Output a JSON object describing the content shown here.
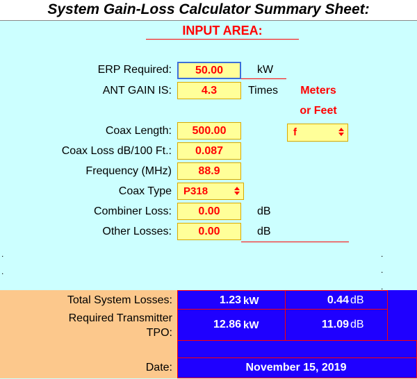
{
  "title": "System Gain-Loss Calculator Summary Sheet:",
  "input_area": {
    "header": "INPUT AREA:",
    "erp": {
      "label": "ERP Required:",
      "value": "50.00",
      "unit": "kW"
    },
    "ant_gain": {
      "label": "ANT GAIN IS:",
      "value": "4.3",
      "unit": "Times"
    },
    "meters_or_feet": {
      "line1": "Meters",
      "line2": "or Feet",
      "selected": "f"
    },
    "coax_length": {
      "label": "Coax Length:",
      "value": "500.00"
    },
    "coax_loss": {
      "label": "Coax Loss dB/100 Ft.:",
      "value": "0.087"
    },
    "frequency": {
      "label": "Frequency (MHz)",
      "value": "88.9"
    },
    "coax_type": {
      "label": "Coax Type",
      "selected": "P318"
    },
    "combiner_loss": {
      "label": "Combiner Loss:",
      "value": "0.00",
      "unit": "dB"
    },
    "other_losses": {
      "label": "Other Losses:",
      "value": "0.00",
      "unit": "dB"
    }
  },
  "dots": [
    ".",
    ".",
    ".",
    ".",
    "."
  ],
  "output": {
    "total_losses": {
      "label": "Total System Losses:",
      "kw_value": "1.23",
      "kw_unit": "kW",
      "db_value": "0.44",
      "db_unit": "dB"
    },
    "required_tpo": {
      "label_line1": "Required Transmitter",
      "label_line2": "TPO:",
      "kw_value": "12.86",
      "kw_unit": "kW",
      "db_value": "11.09",
      "db_unit": "dB"
    },
    "date": {
      "label": "Date:",
      "value": "November 15, 2019"
    }
  },
  "colors": {
    "input_bg": "#ccffff",
    "field_bg": "#ffff99",
    "output_bg": "#1f00ff",
    "label_bg": "#fcc88c",
    "accent": "#ff0000"
  }
}
